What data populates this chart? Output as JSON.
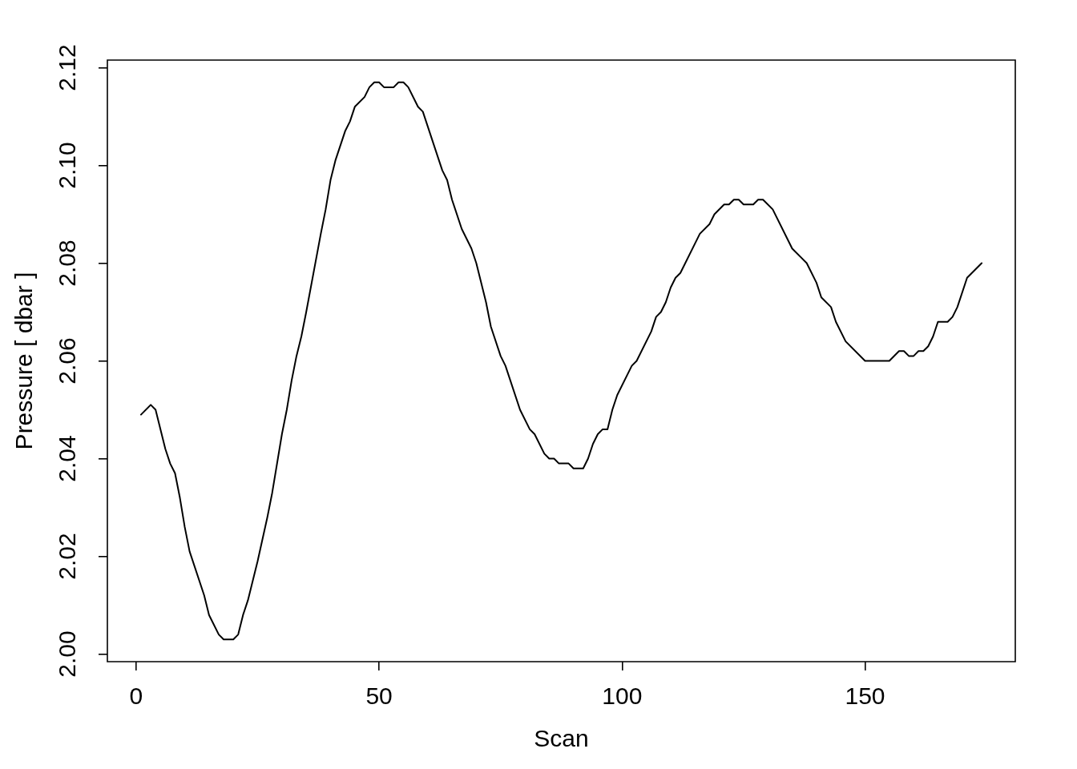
{
  "chart_data": {
    "type": "line",
    "xlabel": "Scan",
    "ylabel": "Pressure [ dbar ]",
    "x": [
      1,
      3,
      4,
      6,
      7,
      8,
      9,
      10,
      11,
      14,
      15,
      17,
      18,
      20,
      21,
      22,
      23,
      25,
      27,
      28,
      30,
      31,
      32,
      33,
      34,
      35,
      38,
      39,
      40,
      41,
      43,
      44,
      45,
      47,
      48,
      49,
      50,
      51,
      53,
      54,
      55,
      56,
      58,
      59,
      62,
      63,
      64,
      65,
      67,
      69,
      70,
      72,
      73,
      75,
      76,
      79,
      81,
      82,
      84,
      85,
      86,
      87,
      89,
      90,
      92,
      93,
      94,
      95,
      96,
      97,
      98,
      99,
      102,
      103,
      106,
      107,
      108,
      109,
      110,
      111,
      112,
      116,
      118,
      119,
      121,
      122,
      123,
      124,
      125,
      127,
      128,
      129,
      131,
      135,
      137,
      138,
      140,
      141,
      143,
      144,
      146,
      150,
      155,
      157,
      158,
      159,
      160,
      161,
      162,
      163,
      164,
      165,
      167,
      168,
      169,
      171,
      174
    ],
    "values": [
      2.049,
      2.051,
      2.05,
      2.042,
      2.039,
      2.037,
      2.032,
      2.026,
      2.021,
      2.012,
      2.008,
      2.004,
      2.003,
      2.003,
      2.004,
      2.008,
      2.011,
      2.019,
      2.028,
      2.033,
      2.045,
      2.05,
      2.056,
      2.061,
      2.065,
      2.07,
      2.086,
      2.091,
      2.097,
      2.101,
      2.107,
      2.109,
      2.112,
      2.114,
      2.116,
      2.117,
      2.117,
      2.116,
      2.116,
      2.117,
      2.117,
      2.116,
      2.112,
      2.111,
      2.102,
      2.099,
      2.097,
      2.093,
      2.087,
      2.083,
      2.08,
      2.072,
      2.067,
      2.061,
      2.059,
      2.05,
      2.046,
      2.045,
      2.041,
      2.04,
      2.04,
      2.039,
      2.039,
      2.038,
      2.038,
      2.04,
      2.043,
      2.045,
      2.046,
      2.046,
      2.05,
      2.053,
      2.059,
      2.06,
      2.066,
      2.069,
      2.07,
      2.072,
      2.075,
      2.077,
      2.078,
      2.086,
      2.088,
      2.09,
      2.092,
      2.092,
      2.093,
      2.093,
      2.092,
      2.092,
      2.093,
      2.093,
      2.091,
      2.083,
      2.081,
      2.08,
      2.076,
      2.073,
      2.071,
      2.068,
      2.064,
      2.06,
      2.06,
      2.062,
      2.062,
      2.061,
      2.061,
      2.062,
      2.062,
      2.063,
      2.065,
      2.068,
      2.068,
      2.069,
      2.071,
      2.077,
      2.08
    ],
    "color": "#000000",
    "xlim": [
      -5.92,
      180.92
    ],
    "ylim": [
      1.99844,
      2.12156
    ],
    "xticks": [
      0,
      50,
      100,
      150
    ],
    "yticks": [
      {
        "value": 2.0,
        "label": "2.00"
      },
      2.02,
      2.04,
      2.06,
      2.08,
      {
        "value": 2.1,
        "label": "2.10"
      },
      2.12
    ]
  }
}
